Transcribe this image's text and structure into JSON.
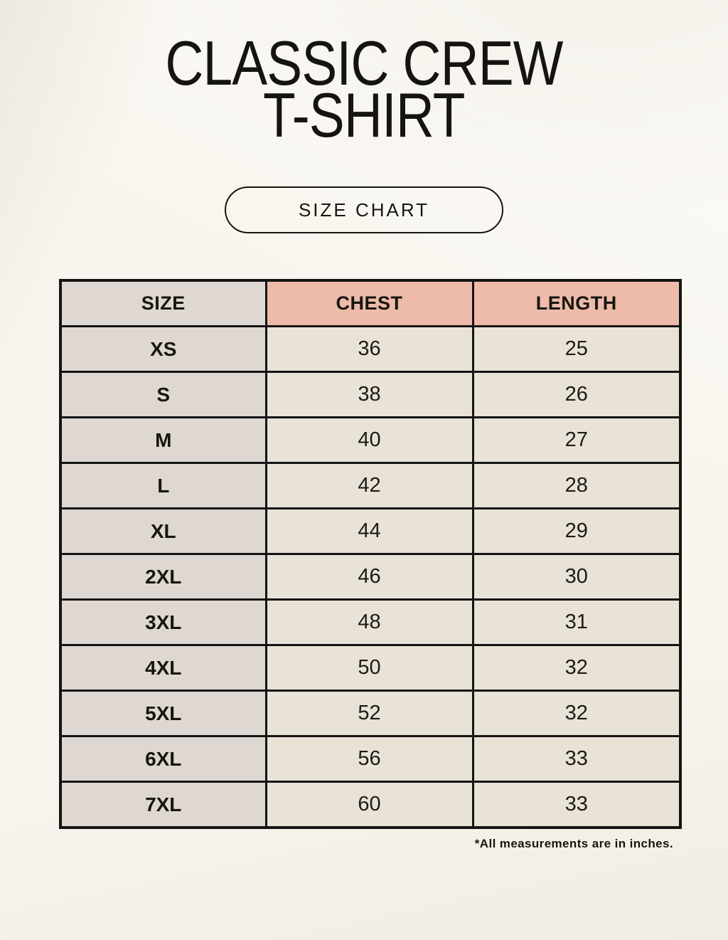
{
  "header": {
    "title_line1": "CLASSIC CREW",
    "title_line2": "T-SHIRT",
    "size_chart_button": "SIZE CHART"
  },
  "chart_data": {
    "type": "table",
    "title": "CLASSIC CREW T-SHIRT",
    "subtitle": "SIZE CHART",
    "columns": [
      "SIZE",
      "CHEST",
      "LENGTH"
    ],
    "rows": [
      [
        "XS",
        "36",
        "25"
      ],
      [
        "S",
        "38",
        "26"
      ],
      [
        "M",
        "40",
        "27"
      ],
      [
        "L",
        "42",
        "28"
      ],
      [
        "XL",
        "44",
        "29"
      ],
      [
        "2XL",
        "46",
        "30"
      ],
      [
        "3XL",
        "48",
        "31"
      ],
      [
        "4XL",
        "50",
        "32"
      ],
      [
        "5XL",
        "52",
        "32"
      ],
      [
        "6XL",
        "56",
        "33"
      ],
      [
        "7XL",
        "60",
        "33"
      ]
    ],
    "note": "*All measurements are in inches.",
    "units": "inches"
  },
  "colors": {
    "page_background": "#f8f5ee",
    "size_column_bg": "#ded7d2",
    "header_accent_bg": "#eebbaa",
    "data_cell_bg": "#e9e2d6",
    "border": "#141414",
    "text": "#17160f"
  }
}
